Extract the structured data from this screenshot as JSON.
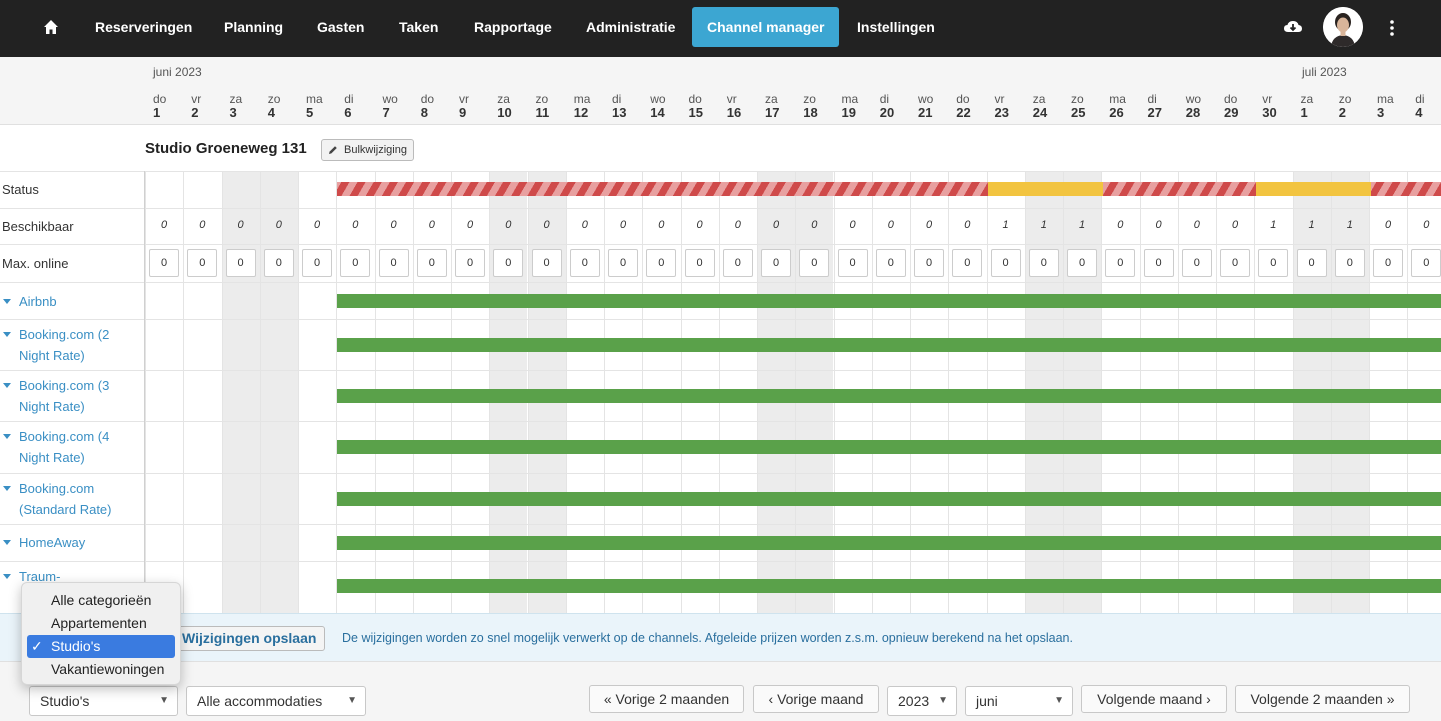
{
  "nav": {
    "items": [
      "Reserveringen",
      "Planning",
      "Gasten",
      "Taken",
      "Rapportage",
      "Administratie",
      "Channel manager",
      "Instellingen"
    ],
    "active": "Channel manager"
  },
  "months": {
    "m1": "juni 2023",
    "m2": "juli 2023"
  },
  "days": [
    {
      "w": "do",
      "n": "1"
    },
    {
      "w": "vr",
      "n": "2"
    },
    {
      "w": "za",
      "n": "3"
    },
    {
      "w": "zo",
      "n": "4"
    },
    {
      "w": "ma",
      "n": "5"
    },
    {
      "w": "di",
      "n": "6"
    },
    {
      "w": "wo",
      "n": "7"
    },
    {
      "w": "do",
      "n": "8"
    },
    {
      "w": "vr",
      "n": "9"
    },
    {
      "w": "za",
      "n": "10"
    },
    {
      "w": "zo",
      "n": "11"
    },
    {
      "w": "ma",
      "n": "12"
    },
    {
      "w": "di",
      "n": "13"
    },
    {
      "w": "wo",
      "n": "14"
    },
    {
      "w": "do",
      "n": "15"
    },
    {
      "w": "vr",
      "n": "16"
    },
    {
      "w": "za",
      "n": "17"
    },
    {
      "w": "zo",
      "n": "18"
    },
    {
      "w": "ma",
      "n": "19"
    },
    {
      "w": "di",
      "n": "20"
    },
    {
      "w": "wo",
      "n": "21"
    },
    {
      "w": "do",
      "n": "22"
    },
    {
      "w": "vr",
      "n": "23"
    },
    {
      "w": "za",
      "n": "24"
    },
    {
      "w": "zo",
      "n": "25"
    },
    {
      "w": "ma",
      "n": "26"
    },
    {
      "w": "di",
      "n": "27"
    },
    {
      "w": "wo",
      "n": "28"
    },
    {
      "w": "do",
      "n": "29"
    },
    {
      "w": "vr",
      "n": "30"
    },
    {
      "w": "za",
      "n": "1"
    },
    {
      "w": "zo",
      "n": "2"
    },
    {
      "w": "ma",
      "n": "3"
    },
    {
      "w": "di",
      "n": "4"
    }
  ],
  "unit": {
    "title": "Studio Groeneweg 131",
    "bulk_label": "Bulkwijziging"
  },
  "rows": {
    "status": "Status",
    "available": "Beschikbaar",
    "max_online": "Max. online"
  },
  "availability": [
    "0",
    "0",
    "0",
    "0",
    "0",
    "0",
    "0",
    "0",
    "0",
    "0",
    "0",
    "0",
    "0",
    "0",
    "0",
    "0",
    "0",
    "0",
    "0",
    "0",
    "0",
    "0",
    "1",
    "1",
    "1",
    "0",
    "0",
    "0",
    "0",
    "1",
    "1",
    "1",
    "0",
    "0"
  ],
  "max_online": [
    "0",
    "0",
    "0",
    "0",
    "0",
    "0",
    "0",
    "0",
    "0",
    "0",
    "0",
    "0",
    "0",
    "0",
    "0",
    "0",
    "0",
    "0",
    "0",
    "0",
    "0",
    "0",
    "0",
    "0",
    "0",
    "0",
    "0",
    "0",
    "0",
    "0",
    "0",
    "0",
    "0",
    "0"
  ],
  "channels": [
    {
      "line1": "Airbnb",
      "line2": ""
    },
    {
      "line1": "Booking.com (2",
      "line2": "Night Rate)"
    },
    {
      "line1": "Booking.com (3",
      "line2": "Night Rate)"
    },
    {
      "line1": "Booking.com (4",
      "line2": "Night Rate)"
    },
    {
      "line1": "Booking.com",
      "line2": "(Standard Rate)"
    },
    {
      "line1": "HomeAway",
      "line2": ""
    },
    {
      "line1": "Traum-",
      "line2": ""
    }
  ],
  "save": {
    "button": "Wijzigingen opslaan",
    "message": "De wijzigingen worden zo snel mogelijk verwerkt op de channels. Afgeleide prijzen worden z.s.m. opnieuw berekend na het opslaan."
  },
  "dropdown": {
    "options": [
      "Alle categorieën",
      "Appartementen",
      "Studio's",
      "Vakantiewoningen"
    ],
    "selected": "Studio's",
    "check": "✓"
  },
  "bottom": {
    "category": "Studio's",
    "accommodation": "Alle accommodaties",
    "prev2": "« Vorige 2 maanden",
    "prev1": "‹ Vorige maand",
    "year": "2023",
    "month": "juni",
    "next1": "Volgende maand ›",
    "next2": "Volgende 2 maanden »"
  },
  "colors": {
    "nav_bg": "#222222",
    "accent": "#3ca6d2",
    "closed": "#cf4a4a",
    "partial": "#f2c440",
    "open": "#5aa14a"
  }
}
